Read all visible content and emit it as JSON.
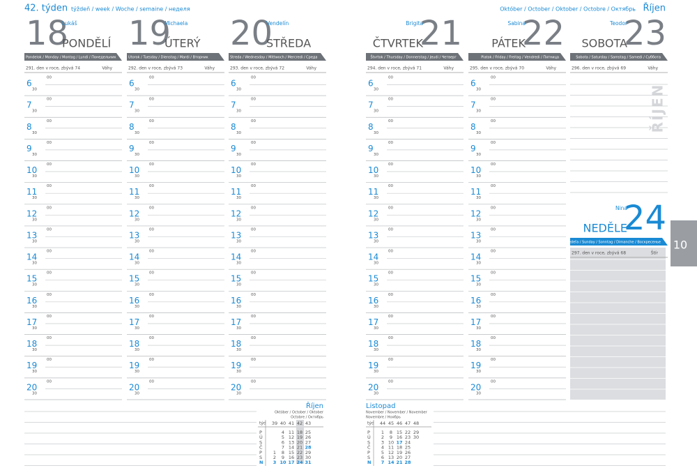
{
  "header": {
    "week": "42. týden",
    "week_langs": "týždeň / week / Woche / semaine / неделя",
    "month_langs": "Október / October / Oktober / Octobre / Октябрь",
    "month": "Říjen"
  },
  "days": [
    {
      "number": 18,
      "name": "PONDĚLÍ",
      "nameday": "Lukáš",
      "langs": "Pondelok / Monday / Montag / Lundi / Понедельник",
      "info": "291. den v roce, zbývá 74",
      "sign": "Váhy"
    },
    {
      "number": 19,
      "name": "ÚTERÝ",
      "nameday": "Michaela",
      "langs": "Utorok / Tuesday / Dienstag / Mardi / Вторник",
      "info": "292. den v roce, zbývá 73",
      "sign": "Váhy"
    },
    {
      "number": 20,
      "name": "STŘEDA",
      "nameday": "Vendelín",
      "langs": "Streda / Wednesday / Mittwoch / Mercredi / Среда",
      "info": "293. den v roce, zbývá 72",
      "sign": "Váhy"
    },
    {
      "number": 21,
      "name": "ČTVRTEK",
      "nameday": "Brigita",
      "langs": "Štvrtok / Thursday / Donnerstag / Jeudi / Четверг",
      "info": "294. den v roce, zbývá 71",
      "sign": "Váhy"
    },
    {
      "number": 22,
      "name": "PÁTEK",
      "nameday": "Sabina",
      "langs": "Piatok / Friday / Freitag / Vendredi / Пятница",
      "info": "295. den v roce, zbývá 70",
      "sign": "Váhy"
    },
    {
      "number": 23,
      "name": "SOBOTA",
      "nameday": "Teodor",
      "langs": "Sobota / Saturday / Samstag / Samedi / Суббота",
      "info": "296. den v roce, zbývá 69",
      "sign": "Váhy"
    },
    {
      "number": 24,
      "name": "NEDĚLE",
      "nameday": "Nina",
      "langs": "Nedeľa / Sunday / Sonntag / Dimanche / Воскресенье",
      "info": "297. den v roce, zbývá 68",
      "sign": "Štír"
    }
  ],
  "hours": [
    6,
    7,
    8,
    9,
    10,
    11,
    12,
    13,
    14,
    15,
    16,
    17,
    18,
    19,
    20
  ],
  "minutes": [
    "00",
    "30"
  ],
  "side_month": "ŘÍJEN",
  "tab": "10",
  "calendars": [
    {
      "title": "Říjen",
      "subtitle": [
        "Október / October / Oktober",
        "Octobre / Октябрь"
      ],
      "week_label": "týd",
      "weeks": [
        39,
        40,
        41,
        42,
        43
      ],
      "holidays": [
        28
      ],
      "rows": [
        {
          "day": "P",
          "dates": [
            null,
            4,
            11,
            18,
            25
          ]
        },
        {
          "day": "Ú",
          "dates": [
            null,
            5,
            12,
            19,
            26
          ]
        },
        {
          "day": "S",
          "dates": [
            null,
            6,
            13,
            20,
            27
          ]
        },
        {
          "day": "Č",
          "dates": [
            null,
            7,
            14,
            21,
            28
          ]
        },
        {
          "day": "P",
          "dates": [
            1,
            8,
            15,
            22,
            29
          ]
        },
        {
          "day": "S",
          "dates": [
            2,
            9,
            16,
            23,
            30
          ]
        },
        {
          "day": "N",
          "dates": [
            3,
            10,
            17,
            24,
            31
          ]
        }
      ]
    },
    {
      "title": "Listopad",
      "subtitle": [
        "November / November / November",
        "Novembre / Ноябрь"
      ],
      "week_label": "týd",
      "weeks": [
        44,
        45,
        46,
        47,
        48
      ],
      "holidays": [
        17
      ],
      "rows": [
        {
          "day": "P",
          "dates": [
            1,
            8,
            15,
            22,
            29
          ]
        },
        {
          "day": "Ú",
          "dates": [
            2,
            9,
            16,
            23,
            30
          ]
        },
        {
          "day": "S",
          "dates": [
            3,
            10,
            17,
            24,
            null
          ]
        },
        {
          "day": "Č",
          "dates": [
            4,
            11,
            18,
            25,
            null
          ]
        },
        {
          "day": "P",
          "dates": [
            5,
            12,
            19,
            26,
            null
          ]
        },
        {
          "day": "S",
          "dates": [
            6,
            13,
            20,
            27,
            null
          ]
        },
        {
          "day": "N",
          "dates": [
            7,
            14,
            21,
            28,
            null
          ]
        }
      ]
    }
  ]
}
